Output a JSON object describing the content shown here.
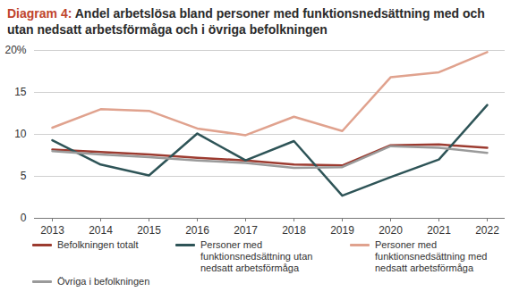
{
  "chart_data": {
    "type": "line",
    "title": "Diagram 4: Andel arbetslösa bland personer med funktionsnedsättning med och utan nedsatt arbetsförmåga och i övriga befolkningen",
    "categories": [
      "2013",
      "2014",
      "2015",
      "2016",
      "2017",
      "2018",
      "2019",
      "2020",
      "2021",
      "2022"
    ],
    "series": [
      {
        "name": "Befolkningen totalt",
        "color": "#9c3b30",
        "values": [
          8.2,
          7.9,
          7.6,
          7.2,
          6.9,
          6.4,
          6.3,
          8.7,
          8.8,
          8.4
        ]
      },
      {
        "name": "Personer med funktionsnedsättning utan nedsatt arbetsförmåga",
        "color": "#2e5457",
        "values": [
          9.3,
          6.4,
          5.1,
          10.1,
          6.9,
          9.2,
          2.7,
          4.9,
          7.0,
          13.5
        ]
      },
      {
        "name": "Personer med funktionsnedsättning med nedsatt arbetsförmåga",
        "color": "#e0a28e",
        "values": [
          10.8,
          13.0,
          12.8,
          10.7,
          9.9,
          12.1,
          10.4,
          16.8,
          17.4,
          19.8
        ]
      },
      {
        "name": "Övriga i befolkningen",
        "color": "#9a9a9a",
        "values": [
          8.0,
          7.6,
          7.3,
          6.9,
          6.6,
          6.0,
          6.1,
          8.6,
          8.4,
          7.8
        ]
      }
    ],
    "ylim": [
      0,
      20
    ],
    "yticks": [
      0,
      5,
      10,
      15,
      {
        "value": 20,
        "label": "20%"
      }
    ],
    "grid": true,
    "legend": "bottom"
  }
}
